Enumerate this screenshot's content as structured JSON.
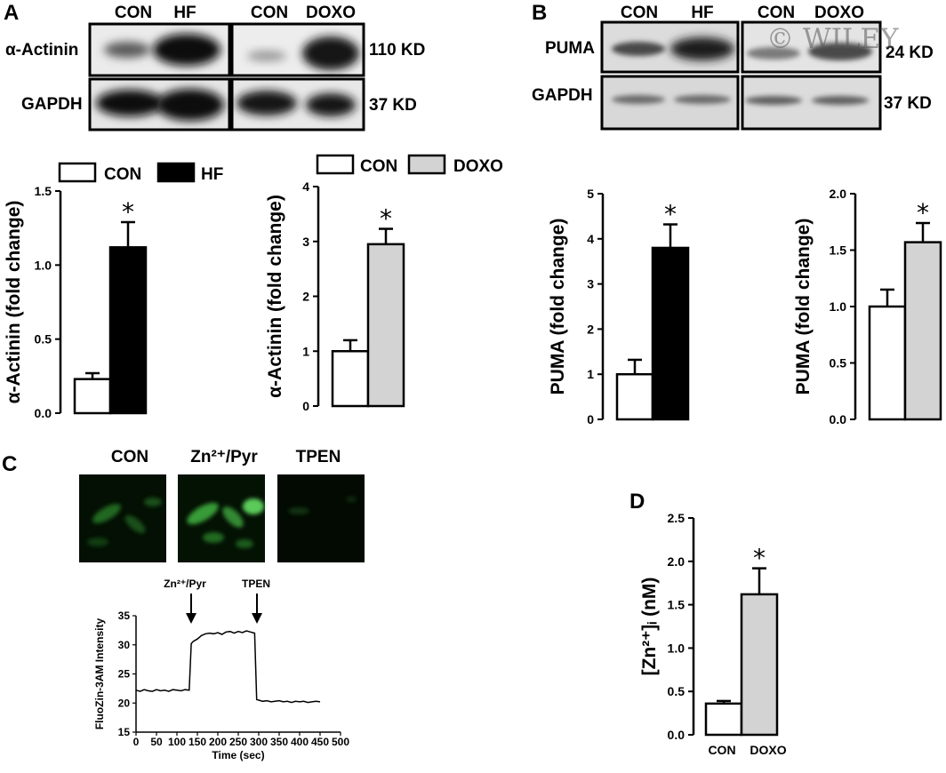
{
  "panels": {
    "A": {
      "letter": "A",
      "blot": {
        "lanes_left": [
          "CON",
          "HF"
        ],
        "lanes_right": [
          "CON",
          "DOXO"
        ],
        "bands": [
          {
            "name": "α-Actinin",
            "size": "110 KD"
          },
          {
            "name": "GAPDH",
            "size": "37 KD"
          }
        ]
      }
    },
    "B": {
      "letter": "B",
      "watermark": "© WILEY",
      "blot": {
        "lanes_left": [
          "CON",
          "HF"
        ],
        "lanes_right": [
          "CON",
          "DOXO"
        ],
        "bands": [
          {
            "name": "PUMA",
            "size": "24 KD"
          },
          {
            "name": "GAPDH",
            "size": "37 KD"
          }
        ]
      }
    },
    "C": {
      "letter": "C",
      "image_labels": [
        "CON",
        "Zn²⁺/Pyr",
        "TPEN"
      ],
      "arrow_labels": [
        "Zn²⁺/Pyr",
        "TPEN"
      ]
    },
    "D": {
      "letter": "D"
    }
  },
  "chart_data": [
    {
      "id": "A1",
      "type": "bar",
      "legend": [
        "CON",
        "HF"
      ],
      "categories": [
        "CON",
        "HF"
      ],
      "values": [
        0.23,
        1.12
      ],
      "errors": [
        0.04,
        0.17
      ],
      "significance": [
        "",
        "*"
      ],
      "ylabel": "α-Actinin (fold change)",
      "ylim": [
        0,
        1.5
      ],
      "yticks": [
        "0.0",
        "0.5",
        "1.0",
        "1.5"
      ],
      "colors": [
        "#ffffff",
        "#000000"
      ]
    },
    {
      "id": "A2",
      "type": "bar",
      "legend": [
        "CON",
        "DOXO"
      ],
      "categories": [
        "CON",
        "DOXO"
      ],
      "values": [
        1.0,
        2.95
      ],
      "errors": [
        0.2,
        0.28
      ],
      "significance": [
        "",
        "*"
      ],
      "ylabel": "α-Actinin (fold change)",
      "ylim": [
        0,
        4
      ],
      "yticks": [
        "0",
        "1",
        "2",
        "3",
        "4"
      ],
      "colors": [
        "#ffffff",
        "#d3d3d3"
      ]
    },
    {
      "id": "B1",
      "type": "bar",
      "categories": [
        "CON",
        "HF"
      ],
      "values": [
        1.0,
        3.8
      ],
      "errors": [
        0.32,
        0.52
      ],
      "significance": [
        "",
        "*"
      ],
      "ylabel": "PUMA (fold change)",
      "ylim": [
        0,
        5
      ],
      "yticks": [
        "0",
        "1",
        "2",
        "3",
        "4",
        "5"
      ],
      "colors": [
        "#ffffff",
        "#000000"
      ]
    },
    {
      "id": "B2",
      "type": "bar",
      "categories": [
        "CON",
        "DOXO"
      ],
      "values": [
        1.0,
        1.57
      ],
      "errors": [
        0.15,
        0.17
      ],
      "significance": [
        "",
        "*"
      ],
      "ylabel": "PUMA (fold change)",
      "ylim": [
        0,
        2.0
      ],
      "yticks": [
        "0.0",
        "0.5",
        "1.0",
        "1.5",
        "2.0"
      ],
      "colors": [
        "#ffffff",
        "#d3d3d3"
      ]
    },
    {
      "id": "C1",
      "type": "line",
      "xlabel": "Time (sec)",
      "ylabel": "FluoZin-3AM Intensity",
      "xlim": [
        0,
        500
      ],
      "ylim": [
        15,
        35
      ],
      "xticks": [
        "0",
        "50",
        "100",
        "150",
        "200",
        "250",
        "300",
        "350",
        "400",
        "450",
        "500"
      ],
      "yticks": [
        "15",
        "20",
        "25",
        "30",
        "35"
      ],
      "x": [
        0,
        10,
        20,
        30,
        40,
        50,
        60,
        70,
        80,
        90,
        100,
        110,
        120,
        130,
        135,
        140,
        150,
        160,
        170,
        180,
        190,
        200,
        210,
        220,
        230,
        240,
        250,
        260,
        270,
        280,
        290,
        295,
        300,
        310,
        320,
        330,
        340,
        350,
        360,
        370,
        380,
        390,
        400,
        410,
        420,
        430,
        440,
        450
      ],
      "y": [
        22.2,
        22.0,
        22.3,
        22.1,
        22.0,
        22.3,
        22.1,
        22.2,
        22.0,
        22.3,
        22.2,
        22.1,
        22.3,
        22.2,
        30.2,
        30.6,
        31.0,
        31.6,
        31.9,
        32.0,
        31.9,
        32.1,
        31.8,
        32.2,
        32.3,
        32.0,
        32.3,
        32.1,
        32.4,
        32.2,
        32.0,
        20.6,
        20.5,
        20.3,
        20.4,
        20.2,
        20.3,
        20.4,
        20.2,
        20.3,
        20.1,
        20.3,
        20.2,
        20.3,
        20.1,
        20.2,
        20.3,
        20.2
      ]
    },
    {
      "id": "D1",
      "type": "bar",
      "categories": [
        "CON",
        "DOXO"
      ],
      "values": [
        0.36,
        1.62
      ],
      "errors": [
        0.03,
        0.3
      ],
      "significance": [
        "",
        "*"
      ],
      "ylabel": "[Zn²⁺]ᵢ (nM)",
      "ylim": [
        0,
        2.5
      ],
      "yticks": [
        "0.0",
        "0.5",
        "1.0",
        "1.5",
        "2.0",
        "2.5"
      ],
      "colors": [
        "#ffffff",
        "#d3d3d3"
      ]
    }
  ]
}
